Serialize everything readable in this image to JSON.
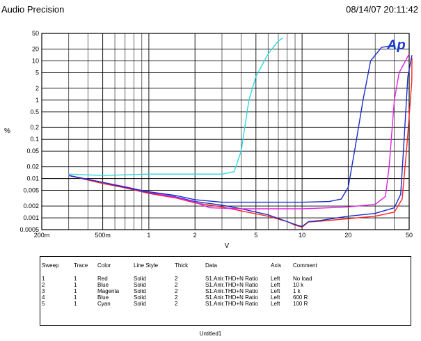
{
  "header": {
    "title": "Audio Precision",
    "timestamp": "08/14/07 20:11:42"
  },
  "logo": {
    "text": "Ap"
  },
  "chart_data": {
    "type": "line",
    "x_scale": "log",
    "y_scale": "log",
    "xlim": [
      0.2,
      50
    ],
    "ylim": [
      0.0005,
      50
    ],
    "xlabel": "V",
    "ylabel": "%",
    "grid": true,
    "x_ticks": [
      {
        "v": 0.2,
        "label": "200m"
      },
      {
        "v": 0.5,
        "label": "500m"
      },
      {
        "v": 1,
        "label": "1"
      },
      {
        "v": 2,
        "label": "2"
      },
      {
        "v": 5,
        "label": "5"
      },
      {
        "v": 10,
        "label": "10"
      },
      {
        "v": 20,
        "label": "20"
      },
      {
        "v": 50,
        "label": "50"
      }
    ],
    "y_ticks": [
      {
        "v": 50,
        "label": "50"
      },
      {
        "v": 20,
        "label": "20"
      },
      {
        "v": 10,
        "label": "10"
      },
      {
        "v": 5,
        "label": "5"
      },
      {
        "v": 2,
        "label": "2"
      },
      {
        "v": 1,
        "label": "1"
      },
      {
        "v": 0.5,
        "label": "0.5"
      },
      {
        "v": 0.2,
        "label": "0.2"
      },
      {
        "v": 0.1,
        "label": "0.1"
      },
      {
        "v": 0.05,
        "label": "0.05"
      },
      {
        "v": 0.02,
        "label": "0.02"
      },
      {
        "v": 0.01,
        "label": "0.01"
      },
      {
        "v": 0.005,
        "label": "0.005"
      },
      {
        "v": 0.002,
        "label": "0.002"
      },
      {
        "v": 0.001,
        "label": "0.001"
      },
      {
        "v": 0.0005,
        "label": "0.0005"
      }
    ],
    "series": [
      {
        "color": "#ff2020",
        "values": [
          [
            0.3,
            0.012
          ],
          [
            0.5,
            0.0075
          ],
          [
            0.7,
            0.0058
          ],
          [
            1,
            0.0042
          ],
          [
            1.5,
            0.0032
          ],
          [
            2,
            0.0024
          ],
          [
            3,
            0.0019
          ],
          [
            4,
            0.0015
          ],
          [
            6,
            0.0011
          ],
          [
            8,
            0.0008
          ],
          [
            9,
            0.00065
          ],
          [
            10,
            0.00058
          ],
          [
            11,
            0.00078
          ],
          [
            13,
            0.00082
          ],
          [
            20,
            0.00095
          ],
          [
            30,
            0.0011
          ],
          [
            40,
            0.0014
          ],
          [
            45,
            0.003
          ],
          [
            48,
            0.05
          ],
          [
            52,
            3
          ],
          [
            56,
            12
          ]
        ]
      },
      {
        "color": "#1a2cc8",
        "values": [
          [
            0.3,
            0.012
          ],
          [
            0.5,
            0.008
          ],
          [
            0.7,
            0.006
          ],
          [
            1,
            0.0044
          ],
          [
            1.5,
            0.0034
          ],
          [
            2,
            0.0026
          ],
          [
            3,
            0.0021
          ],
          [
            4,
            0.0017
          ],
          [
            6,
            0.0012
          ],
          [
            8,
            0.0008
          ],
          [
            9,
            0.00068
          ],
          [
            10,
            0.0006
          ],
          [
            11,
            0.0008
          ],
          [
            13,
            0.00085
          ],
          [
            20,
            0.0011
          ],
          [
            30,
            0.0013
          ],
          [
            40,
            0.0018
          ],
          [
            44,
            0.004
          ],
          [
            46,
            0.06
          ],
          [
            49,
            4
          ],
          [
            54,
            14
          ]
        ]
      },
      {
        "color": "#e020e0",
        "values": [
          [
            0.3,
            0.012
          ],
          [
            0.5,
            0.008
          ],
          [
            0.7,
            0.0062
          ],
          [
            1,
            0.0045
          ],
          [
            1.5,
            0.0033
          ],
          [
            2,
            0.0025
          ],
          [
            2.5,
            0.0018
          ],
          [
            4,
            0.0017
          ],
          [
            6,
            0.0017
          ],
          [
            10,
            0.0017
          ],
          [
            15,
            0.0018
          ],
          [
            20,
            0.0019
          ],
          [
            30,
            0.0022
          ],
          [
            35,
            0.0035
          ],
          [
            37,
            0.02
          ],
          [
            40,
            1
          ],
          [
            43,
            5
          ],
          [
            50,
            15
          ]
        ]
      },
      {
        "color": "#1a2cc8",
        "values": [
          [
            0.3,
            0.012
          ],
          [
            0.5,
            0.008
          ],
          [
            0.7,
            0.006
          ],
          [
            1,
            0.0046
          ],
          [
            1.5,
            0.0037
          ],
          [
            2,
            0.0029
          ],
          [
            3,
            0.0025
          ],
          [
            5,
            0.0025
          ],
          [
            10,
            0.0025
          ],
          [
            15,
            0.0026
          ],
          [
            18,
            0.003
          ],
          [
            20,
            0.006
          ],
          [
            22,
            0.05
          ],
          [
            25,
            1
          ],
          [
            28,
            10
          ],
          [
            33,
            22
          ],
          [
            40,
            25
          ]
        ]
      },
      {
        "color": "#2ed7e0",
        "values": [
          [
            0.3,
            0.013
          ],
          [
            0.5,
            0.012
          ],
          [
            1,
            0.013
          ],
          [
            2,
            0.013
          ],
          [
            3,
            0.013
          ],
          [
            3.6,
            0.015
          ],
          [
            4,
            0.05
          ],
          [
            4.5,
            1
          ],
          [
            5,
            4
          ],
          [
            6,
            15
          ],
          [
            7,
            32
          ],
          [
            7.5,
            38
          ]
        ]
      }
    ]
  },
  "legend": {
    "headers": [
      "Sweep",
      "Trace",
      "Color",
      "Line Style",
      "Thick",
      "Data",
      "Axis",
      "Comment"
    ],
    "rows": [
      [
        "1",
        "1",
        "Red",
        "Solid",
        "2",
        "S1.Anlr.THD+N Ratio",
        "Left",
        "No load"
      ],
      [
        "2",
        "1",
        "Blue",
        "Solid",
        "2",
        "S1.Anlr.THD+N Ratio",
        "Left",
        "10 k"
      ],
      [
        "3",
        "1",
        "Magenta",
        "Solid",
        "2",
        "S1.Anlr.THD+N Ratio",
        "Left",
        "1 k"
      ],
      [
        "4",
        "1",
        "Blue",
        "Solid",
        "2",
        "S1.Anlr.THD+N Ratio",
        "Left",
        "600 R"
      ],
      [
        "5",
        "1",
        "Cyan",
        "Solid",
        "2",
        "S1.Anlr.THD+N Ratio",
        "Left",
        "100 R"
      ]
    ]
  },
  "footer": {
    "text": "Untitled1"
  }
}
